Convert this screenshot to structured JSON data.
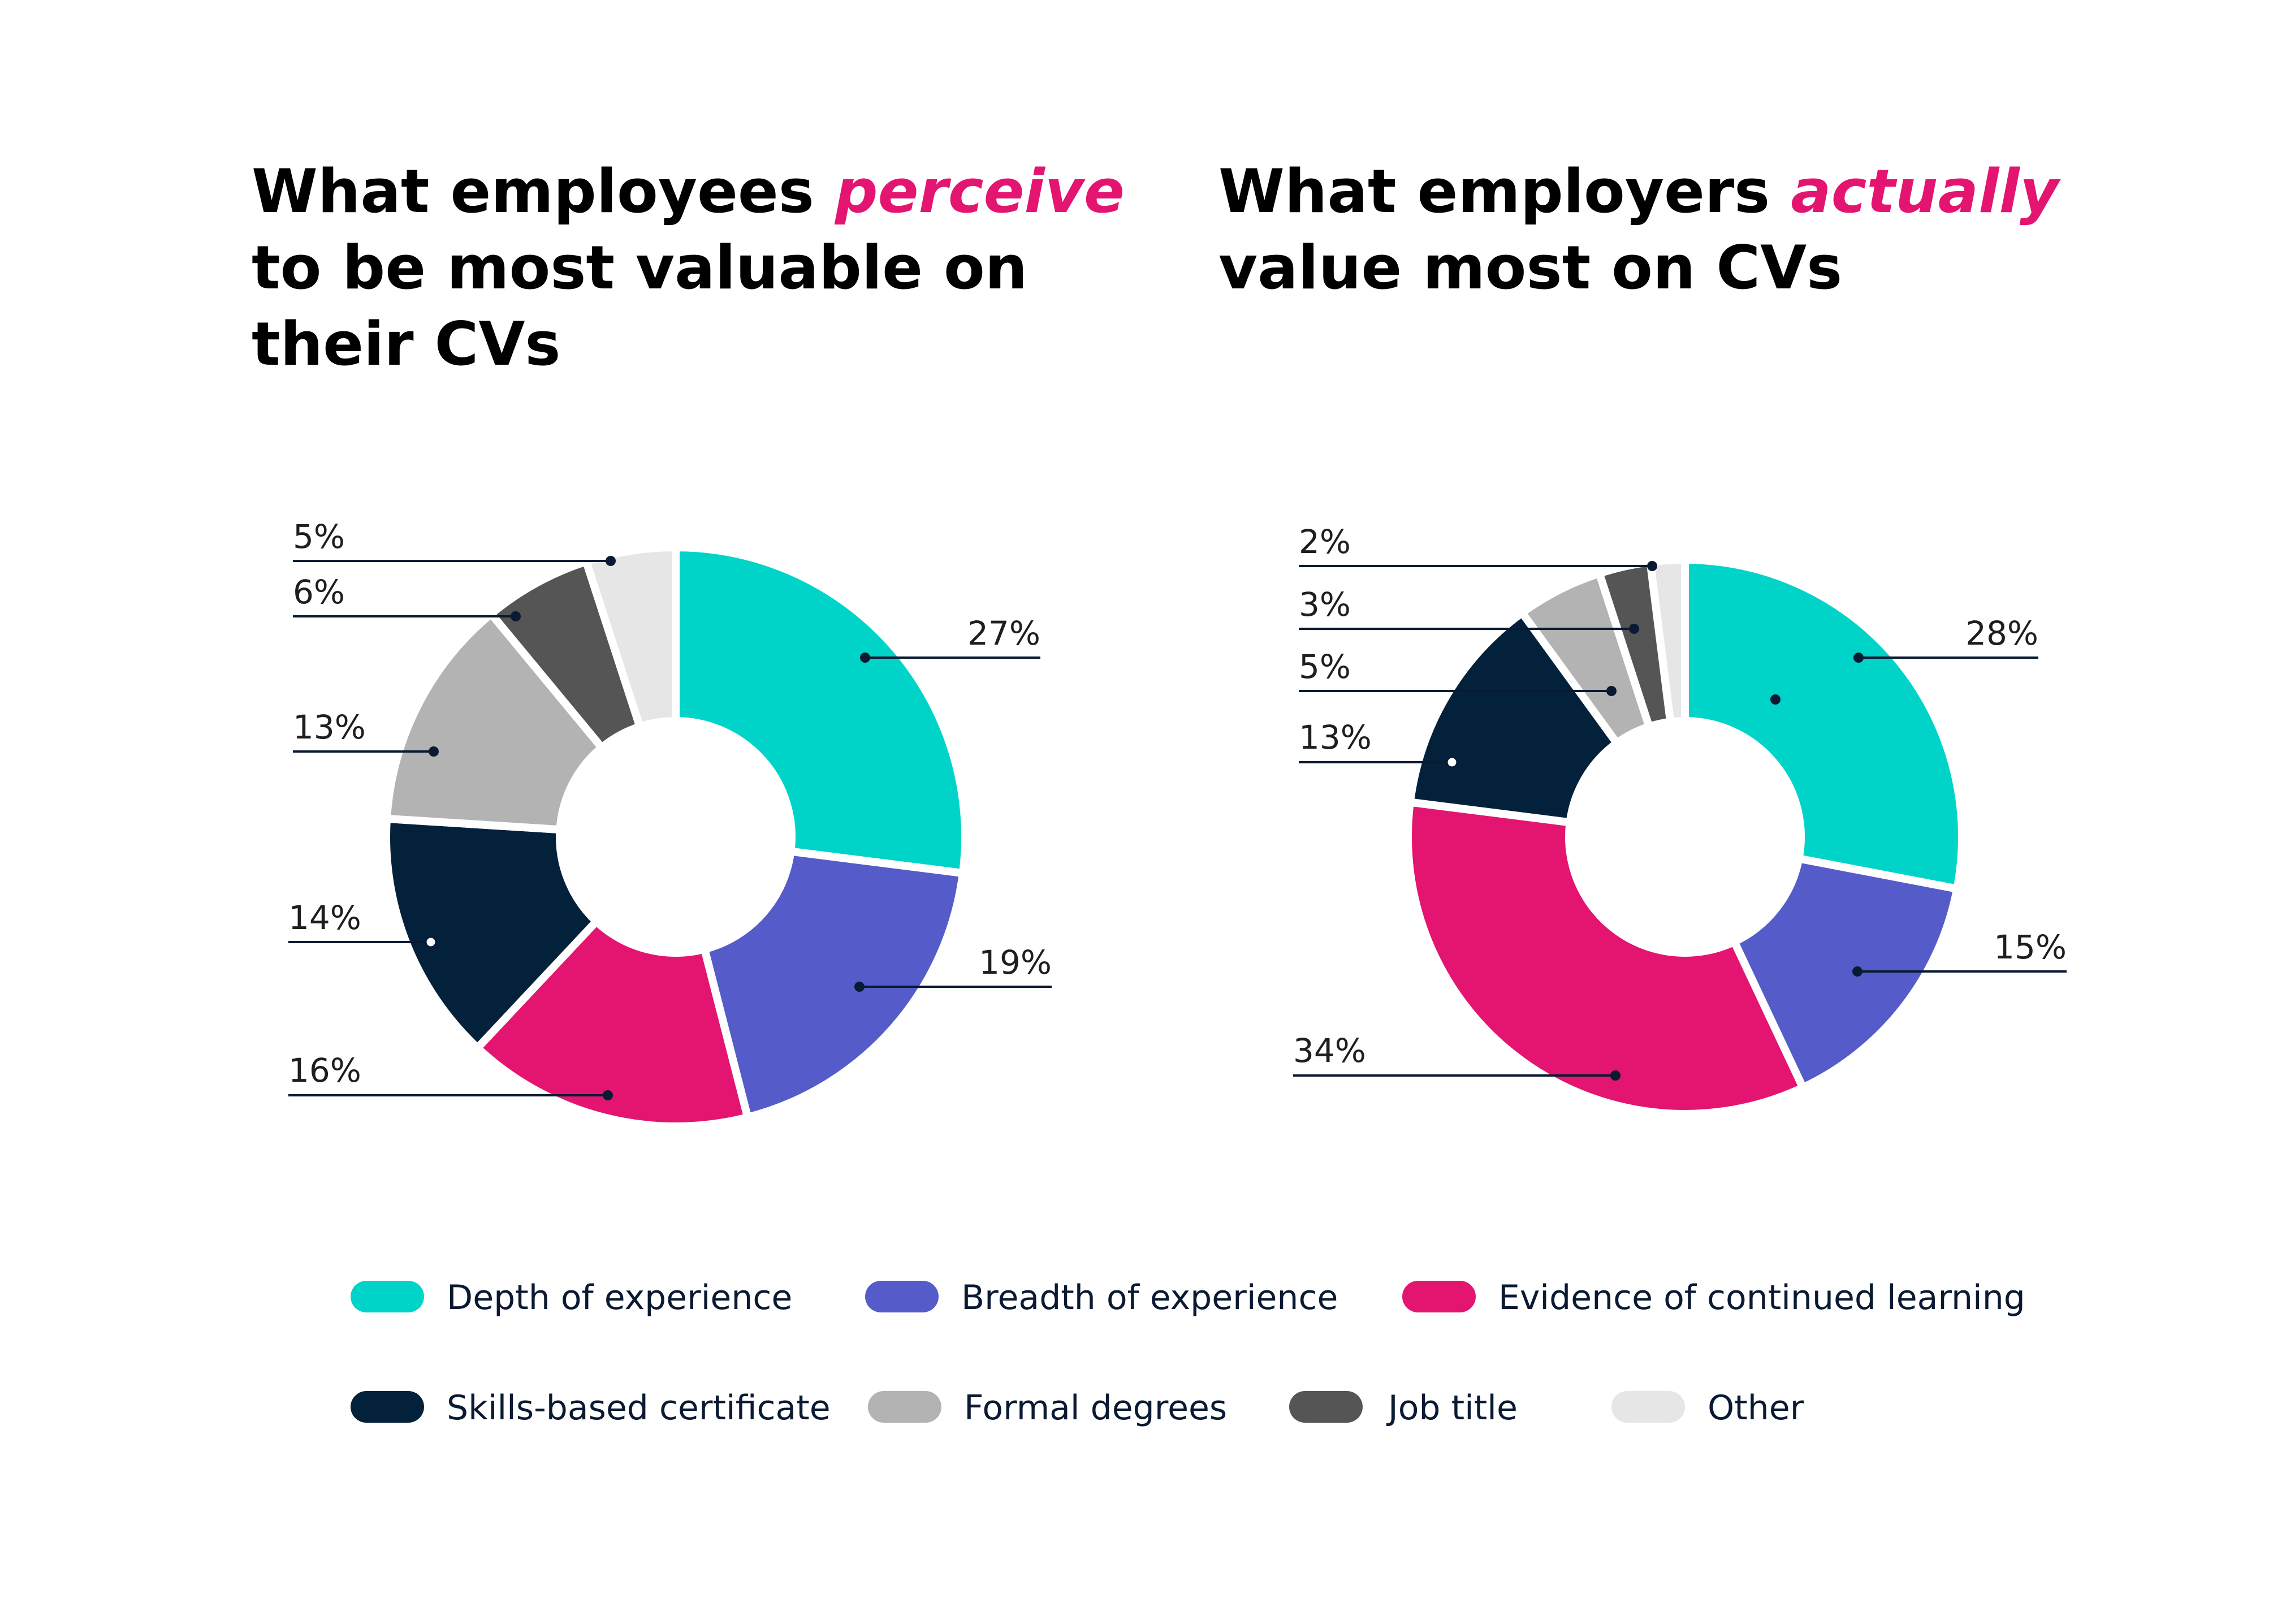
{
  "colors": {
    "depth": "#00d4c8",
    "breadth": "#555cc9",
    "evidence": "#e31570",
    "skills": "#03213b",
    "degrees": "#b3b3b3",
    "jobtitle": "#555555",
    "other": "#e6e6e6",
    "accent": "#e31570"
  },
  "chart_data": [
    {
      "type": "pie",
      "variant": "donut",
      "title": {
        "line1_prefix": "What employees ",
        "line1_accent": "perceive",
        "line2": "to be most valuable on",
        "line3": "their CVs"
      },
      "categories": [
        "Depth of experience",
        "Breadth of experience",
        "Evidence of continued learning",
        "Skills-based certificate",
        "Formal degrees",
        "Job title",
        "Other"
      ],
      "values": [
        27,
        19,
        16,
        14,
        13,
        6,
        5
      ],
      "labels": [
        "27%",
        "19%",
        "16%",
        "14%",
        "13%",
        "6%",
        "5%"
      ]
    },
    {
      "type": "pie",
      "variant": "donut",
      "title": {
        "line1_prefix": "What employers ",
        "line1_accent": "actually",
        "line2": "value most on CVs"
      },
      "categories": [
        "Depth of experience",
        "Breadth of experience",
        "Evidence of continued learning",
        "Skills-based certificate",
        "Formal degrees",
        "Job title",
        "Other"
      ],
      "values": [
        28,
        15,
        34,
        13,
        5,
        3,
        2
      ],
      "labels": [
        "28%",
        "15%",
        "34%",
        "13%",
        "5%",
        "3%",
        "2%"
      ]
    }
  ],
  "legend": [
    {
      "key": "depth",
      "label": "Depth of experience"
    },
    {
      "key": "breadth",
      "label": "Breadth of experience"
    },
    {
      "key": "evidence",
      "label": "Evidence of continued learning"
    },
    {
      "key": "skills",
      "label": "Skills-based certificate"
    },
    {
      "key": "degrees",
      "label": "Formal degrees"
    },
    {
      "key": "jobtitle",
      "label": "Job title"
    },
    {
      "key": "other",
      "label": "Other"
    }
  ]
}
